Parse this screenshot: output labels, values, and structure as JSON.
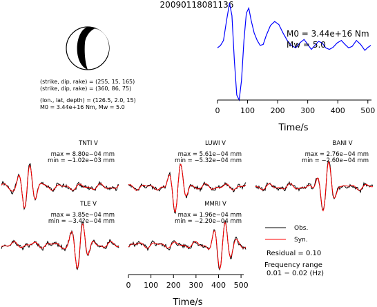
{
  "chart_data": {
    "type": "line",
    "title": "20090118081136",
    "mechanism": {
      "lines": [
        "(strike, dip, rake) = (255, 15, 165)",
        "(strike, dip, rake) = (360, 86, 75)",
        "(lon., lat, depth) = (126.5, 2.0, 15)",
        "M0 = 3.44e+16 Nm, Mw = 5.0"
      ]
    },
    "stf": {
      "xlabel": "Time/s",
      "x_ticks": [
        0,
        100,
        200,
        300,
        400,
        500
      ],
      "xlim": [
        0,
        512
      ],
      "m0_text": "M0 = 3.44e+16 Nm",
      "mw_text": "Mw = 5.0",
      "color": "#0000ff",
      "points": [
        [
          0,
          0.05
        ],
        [
          10,
          0.1
        ],
        [
          20,
          0.2
        ],
        [
          30,
          0.6
        ],
        [
          40,
          0.95
        ],
        [
          48,
          0.7
        ],
        [
          56,
          -0.2
        ],
        [
          64,
          -0.9
        ],
        [
          72,
          -1.0
        ],
        [
          80,
          -0.6
        ],
        [
          88,
          0.2
        ],
        [
          96,
          0.75
        ],
        [
          104,
          0.85
        ],
        [
          112,
          0.6
        ],
        [
          122,
          0.35
        ],
        [
          132,
          0.2
        ],
        [
          142,
          0.1
        ],
        [
          152,
          0.12
        ],
        [
          162,
          0.3
        ],
        [
          176,
          0.5
        ],
        [
          190,
          0.58
        ],
        [
          204,
          0.52
        ],
        [
          218,
          0.35
        ],
        [
          232,
          0.2
        ],
        [
          246,
          0.1
        ],
        [
          260,
          0.05
        ],
        [
          274,
          0.15
        ],
        [
          288,
          0.22
        ],
        [
          300,
          0.12
        ],
        [
          312,
          0.02
        ],
        [
          324,
          0.1
        ],
        [
          336,
          0.18
        ],
        [
          348,
          0.15
        ],
        [
          360,
          0.05
        ],
        [
          372,
          0.02
        ],
        [
          384,
          0.06
        ],
        [
          398,
          0.15
        ],
        [
          412,
          0.2
        ],
        [
          424,
          0.12
        ],
        [
          436,
          0.05
        ],
        [
          448,
          0.08
        ],
        [
          462,
          0.2
        ],
        [
          476,
          0.12
        ],
        [
          490,
          0.0
        ],
        [
          500,
          0.06
        ],
        [
          510,
          0.1
        ]
      ]
    },
    "stations": [
      {
        "name": "TNTI V",
        "max": "max = 8.80e−04 mm",
        "min": "min = −1.02e−03 mm",
        "col": 0,
        "row": 0,
        "seed": 1,
        "peak": 0.22
      },
      {
        "name": "LUWI V",
        "max": "max = 5.61e−04 mm",
        "min": "min = −5.32e−04 mm",
        "col": 1,
        "row": 0,
        "seed": 2,
        "peak": 0.42
      },
      {
        "name": "BANI V",
        "max": "max = 2.76e−04 mm",
        "min": "min = −2.60e−04 mm",
        "col": 2,
        "row": 0,
        "seed": 3,
        "peak": 0.6
      },
      {
        "name": "TLE V",
        "max": "max = 3.85e−04 mm",
        "min": "min = −3.4?e−04 mm",
        "col": 0,
        "row": 1,
        "seed": 4,
        "peak": 0.67
      },
      {
        "name": "MMRI V",
        "max": "max = 1.96e−04 mm",
        "min": "min = −2.20e−04 mm",
        "col": 1,
        "row": 1,
        "seed": 5,
        "peak": 0.8
      }
    ],
    "bottom_axis": {
      "xlabel": "Time/s",
      "x_ticks": [
        0,
        100,
        200,
        300,
        400,
        500
      ],
      "xlim": [
        0,
        512
      ]
    },
    "legend": {
      "obs": "Obs.",
      "syn": "Syn.",
      "obs_color": "#000000",
      "syn_color": "#ff0000"
    },
    "residual": "Residual = 0.10",
    "freq_label": "Frequency range",
    "freq_value": "0.01 − 0.02 (Hz)"
  }
}
